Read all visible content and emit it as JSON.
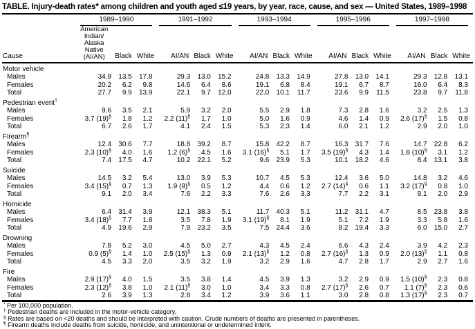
{
  "title": "TABLE. Injury-death rates* among children and youth aged ≤19 years, by year, race, cause, and sex — United States, 1989–1998",
  "table": {
    "cause_header": "Cause",
    "year_groups": [
      "1989–1990",
      "1991–1992",
      "1993–1994",
      "1995–1996",
      "1997–1998"
    ],
    "aian_stacked_label": [
      "American",
      "Indian/",
      "Alaska",
      "Native",
      "(AI/AN)"
    ],
    "race_headers": [
      "AI/AN",
      "Black",
      "White"
    ],
    "sections": [
      {
        "name": "Motor vehicle",
        "marker": "",
        "rows": [
          {
            "label": "Males",
            "values": [
              "34.9",
              "13.5",
              "17.8",
              "29.3",
              "13.0",
              "15.2",
              "24.8",
              "13.3",
              "14.9",
              "27.8",
              "13.0",
              "14.1",
              "29.3",
              "12.8",
              "13.1"
            ]
          },
          {
            "label": "Females",
            "values": [
              "20.2",
              "6.2",
              "9.8",
              "14.6",
              "6.4",
              "8.6",
              "19.1",
              "6.8",
              "8.4",
              "19.1",
              "6.7",
              "8.7",
              "16.0",
              "6.4",
              "8.3"
            ]
          },
          {
            "label": "Total",
            "values": [
              "27.7",
              "9.9",
              "13.9",
              "22.1",
              "9.7",
              "12.0",
              "22.0",
              "10.1",
              "11.7",
              "23.6",
              "9.9",
              "11.5",
              "23.8",
              "9.7",
              "11.8"
            ]
          }
        ]
      },
      {
        "name": "Pedestrian event",
        "marker": "†",
        "rows": [
          {
            "label": "Males",
            "values": [
              "9.6",
              "3.5",
              "2.1",
              "5.9",
              "3.2",
              "2.0",
              "5.5",
              "2.9",
              "1.8",
              "7.3",
              "2.8",
              "1.6",
              "3.2",
              "2.5",
              "1.3"
            ]
          },
          {
            "label": "Females",
            "values": [
              "3.7 (19)§",
              "1.8",
              "1.2",
              "2.2 (11)§",
              "1.7",
              "1.0",
              "5.0",
              "1.6",
              "0.9",
              "4.6",
              "1.4",
              "0.9",
              "2.6 (17)§",
              "1.5",
              "0.8"
            ]
          },
          {
            "label": "Total",
            "values": [
              "6.7",
              "2.6",
              "1.7",
              "4.1",
              "2.4",
              "1.5",
              "5.3",
              "2.3",
              "1.4",
              "6.0",
              "2.1",
              "1.2",
              "2.9",
              "2.0",
              "1.0"
            ]
          }
        ]
      },
      {
        "name": "Firearm",
        "marker": "¶",
        "rows": [
          {
            "label": "Males",
            "values": [
              "12.4",
              "30.6",
              "7.7",
              "18.8",
              "39.2",
              "8.7",
              "15.8",
              "42.2",
              "8.7",
              "16.3",
              "31.7",
              "7.6",
              "14.7",
              "22.8",
              "6.2"
            ]
          },
          {
            "label": "Females",
            "values": [
              "2.3 (10)§",
              "4.0",
              "1.6",
              "1.2 (6)§",
              "4.5",
              "1.6",
              "3.1 (16)§",
              "5.1",
              "1.7",
              "3.5 (19)§",
              "4.3",
              "1.4",
              "1.8 (10)§",
              "3.1",
              "1.2"
            ]
          },
          {
            "label": "Total",
            "values": [
              "7.4",
              "17.5",
              "4.7",
              "10.2",
              "22.1",
              "5.2",
              "9.6",
              "23.9",
              "5.3",
              "10.1",
              "18.2",
              "4.6",
              "8.4",
              "13.1",
              "3.8"
            ]
          }
        ]
      },
      {
        "name": "Suicide",
        "marker": "",
        "rows": [
          {
            "label": "Males",
            "values": [
              "14.5",
              "3.2",
              "5.4",
              "13.0",
              "3.9",
              "5.3",
              "10.7",
              "4.5",
              "5.3",
              "12.4",
              "3.6",
              "5.0",
              "14.8",
              "3.2",
              "4.6"
            ]
          },
          {
            "label": "Females",
            "values": [
              "3.4 (15)§",
              "0.7",
              "1.3",
              "1.9 (9)§",
              "0.5",
              "1.2",
              "4.4",
              "0.6",
              "1.2",
              "2.7 (14)§",
              "0.6",
              "1.1",
              "3.2 (17)§",
              "0.8",
              "1.0"
            ]
          },
          {
            "label": "Total",
            "values": [
              "9.1",
              "2.0",
              "3.4",
              "7.6",
              "2.2",
              "3.3",
              "7.6",
              "2.6",
              "3.3",
              "7.7",
              "2.2",
              "3.1",
              "9.1",
              "2.0",
              "2.9"
            ]
          }
        ]
      },
      {
        "name": "Homicide",
        "marker": "",
        "rows": [
          {
            "label": "Males",
            "values": [
              "6.4",
              "31.4",
              "3.9",
              "12.1",
              "38.3",
              "5.1",
              "11.7",
              "40.3",
              "5.1",
              "11.2",
              "31.1",
              "4.7",
              "8.5",
              "23.8",
              "3.8"
            ]
          },
          {
            "label": "Females",
            "values": [
              "3.4 (18)§",
              "7.7",
              "1.8",
              "3.5",
              "7.8",
              "1.9",
              "3.1 (19)§",
              "8.1",
              "1.9",
              "5.1",
              "7.2",
              "1.9",
              "3.3",
              "5.8",
              "1.6"
            ]
          },
          {
            "label": "Total",
            "values": [
              "4.9",
              "19.6",
              "2.9",
              "7.9",
              "23.2",
              "3.5",
              "7.5",
              "24.4",
              "3.6",
              "8.2",
              "19.4",
              "3.3",
              "6.0",
              "15.0",
              "2.7"
            ]
          }
        ]
      },
      {
        "name": "Drowning",
        "marker": "",
        "rows": [
          {
            "label": "Males",
            "values": [
              "7.8",
              "5.2",
              "3.0",
              "4.5",
              "5.0",
              "2.7",
              "4.3",
              "4.5",
              "2.4",
              "6.6",
              "4.3",
              "2.4",
              "3.9",
              "4.2",
              "2.3"
            ]
          },
          {
            "label": "Females",
            "values": [
              "0.9 (5)§",
              "1.4",
              "1.0",
              "2.5 (15)§",
              "1.3",
              "0.9",
              "2.1 (13)§",
              "1.2",
              "0.8",
              "2.7 (16)§",
              "1.3",
              "0.9",
              "2.0 (13)§",
              "1.1",
              "0.8"
            ]
          },
          {
            "label": "Total",
            "values": [
              "4.5",
              "3.3",
              "2.0",
              "3.5",
              "3.2",
              "1.9",
              "3.2",
              "2.9",
              "1.6",
              "4.7",
              "2.8",
              "1.7",
              "2.9",
              "2.7",
              "1.6"
            ]
          }
        ]
      },
      {
        "name": "Fire",
        "marker": "",
        "rows": [
          {
            "label": "Males",
            "values": [
              "2.9 (17)§",
              "4.0",
              "1.5",
              "3.5",
              "3.8",
              "1.4",
              "4.5",
              "3.9",
              "1.3",
              "3.2",
              "2.9",
              "0.9",
              "1.5 (10)§",
              "2.3",
              "0.8"
            ]
          },
          {
            "label": "Females",
            "values": [
              "2.3 (12)§",
              "3.8",
              "1.0",
              "2.1 (11)§",
              "3.0",
              "1.0",
              "3.4",
              "3.3",
              "0.8",
              "2.7 (17)§",
              "2.6",
              "0.7",
              "1.1 (7)§",
              "2.3",
              "0.6"
            ]
          },
          {
            "label": "Total",
            "values": [
              "2.6",
              "3.9",
              "1.3",
              "2.8",
              "3.4",
              "1.2",
              "3.9",
              "3.6",
              "1.1",
              "3.0",
              "2.8",
              "0.8",
              "1.3 (17)§",
              "2.3",
              "0.7"
            ]
          }
        ]
      }
    ]
  },
  "footnotes": [
    {
      "marker": "*",
      "text": "Per 100,000 population."
    },
    {
      "marker": "†",
      "text": "Pedestrian deaths are included in the motor-vehicle category."
    },
    {
      "marker": "§",
      "text": "Rates are based on <20 deaths and should be interpreted with caution. Crude numbers of deaths are presented in parentheses."
    },
    {
      "marker": "¶",
      "text": "Firearm deaths include deaths from suicide, homicide, and unintentional or undetermined intent."
    }
  ]
}
